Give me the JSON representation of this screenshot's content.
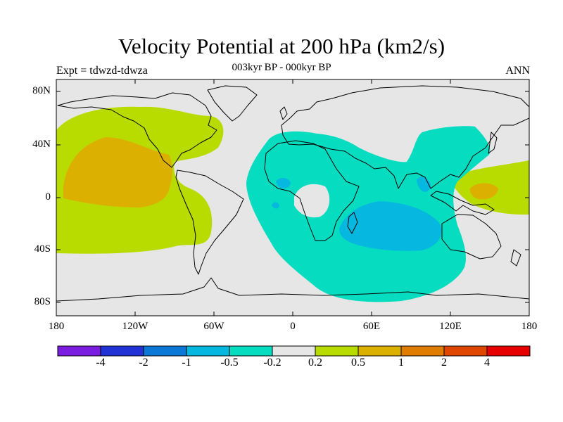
{
  "title": "Velocity Potential at 200 hPa (km2/s)",
  "subtitle": "003kyr BP - 000kyr BP",
  "left_label": "Expt = tdwzd-tdwza",
  "right_label": "ANN",
  "lat_ticks": [
    "80N",
    "40N",
    "0",
    "40S",
    "80S"
  ],
  "lon_ticks": [
    "180",
    "120W",
    "60W",
    "0",
    "60E",
    "120E",
    "180"
  ],
  "colorbar": {
    "labels": [
      "-4",
      "-2",
      "-1",
      "-0.5",
      "-0.2",
      "0.2",
      "0.5",
      "1",
      "2",
      "4"
    ],
    "colors": [
      "#7a1de0",
      "#2233d6",
      "#0a78d6",
      "#06b8e0",
      "#06dcc0",
      "#e6e6e6",
      "#b8dc00",
      "#dcb000",
      "#e07c00",
      "#e04600",
      "#e60000"
    ]
  },
  "colors": {
    "background": "#e6e6e6",
    "positive_weak": "#b8dc00",
    "positive_mid": "#dcb000",
    "positive_strong": "#e07c00",
    "negative_weak": "#06dcc0",
    "negative_mid": "#06b8e0"
  }
}
